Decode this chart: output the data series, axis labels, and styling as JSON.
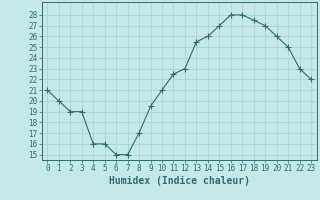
{
  "x": [
    0,
    1,
    2,
    3,
    4,
    5,
    6,
    7,
    8,
    9,
    10,
    11,
    12,
    13,
    14,
    15,
    16,
    17,
    18,
    19,
    20,
    21,
    22,
    23
  ],
  "y": [
    21,
    20,
    19,
    19,
    16,
    16,
    15,
    15,
    17,
    19.5,
    21,
    22.5,
    23,
    25.5,
    26,
    27,
    28,
    28,
    27.5,
    27,
    26,
    25,
    23,
    22
  ],
  "line_color": "#2d6e6e",
  "marker": "+",
  "marker_size": 4,
  "bg_color": "#c5e8e8",
  "grid_color": "#a8d0d0",
  "xlabel": "Humidex (Indice chaleur)",
  "xlabel_fontsize": 7,
  "ylabel_ticks": [
    15,
    16,
    17,
    18,
    19,
    20,
    21,
    22,
    23,
    24,
    25,
    26,
    27,
    28
  ],
  "ylim": [
    14.5,
    29.2
  ],
  "xlim": [
    -0.5,
    23.5
  ],
  "xticks": [
    0,
    1,
    2,
    3,
    4,
    5,
    6,
    7,
    8,
    9,
    10,
    11,
    12,
    13,
    14,
    15,
    16,
    17,
    18,
    19,
    20,
    21,
    22,
    23
  ],
  "tick_color": "#2d6e6e",
  "tick_fontsize": 5.5,
  "spine_color": "#2d6e6e"
}
